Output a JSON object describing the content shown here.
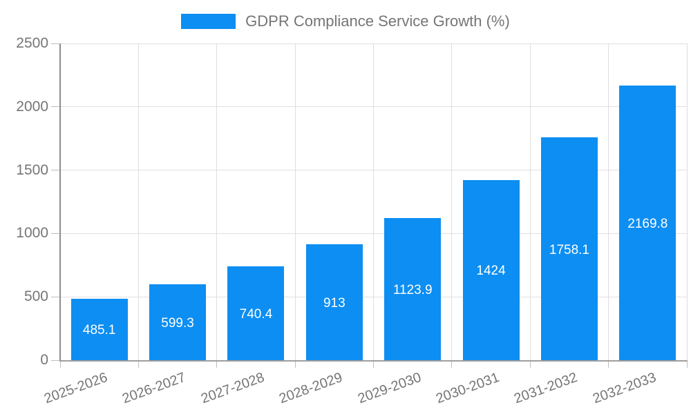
{
  "chart_data": {
    "type": "bar",
    "title": "GDPR Compliance Service Growth (%)",
    "legend_position": "top",
    "categories": [
      "2025-2026",
      "2026-2027",
      "2027-2028",
      "2028-2029",
      "2029-2030",
      "2030-2031",
      "2031-2032",
      "2032-2033"
    ],
    "values": [
      485.1,
      599.3,
      740.4,
      913,
      1123.9,
      1424,
      1758.1,
      2169.8
    ],
    "xlabel": "",
    "ylabel": "",
    "ylim": [
      0,
      2500
    ],
    "yticks": [
      0,
      500,
      1000,
      1500,
      2000,
      2500
    ],
    "grid": true,
    "colors": {
      "bar": "#0d8ef2",
      "value_label": "#ffffff",
      "tick_label": "#757575",
      "grid_line": "#e0e0e0",
      "axis_line": "#9e9e9e"
    }
  }
}
